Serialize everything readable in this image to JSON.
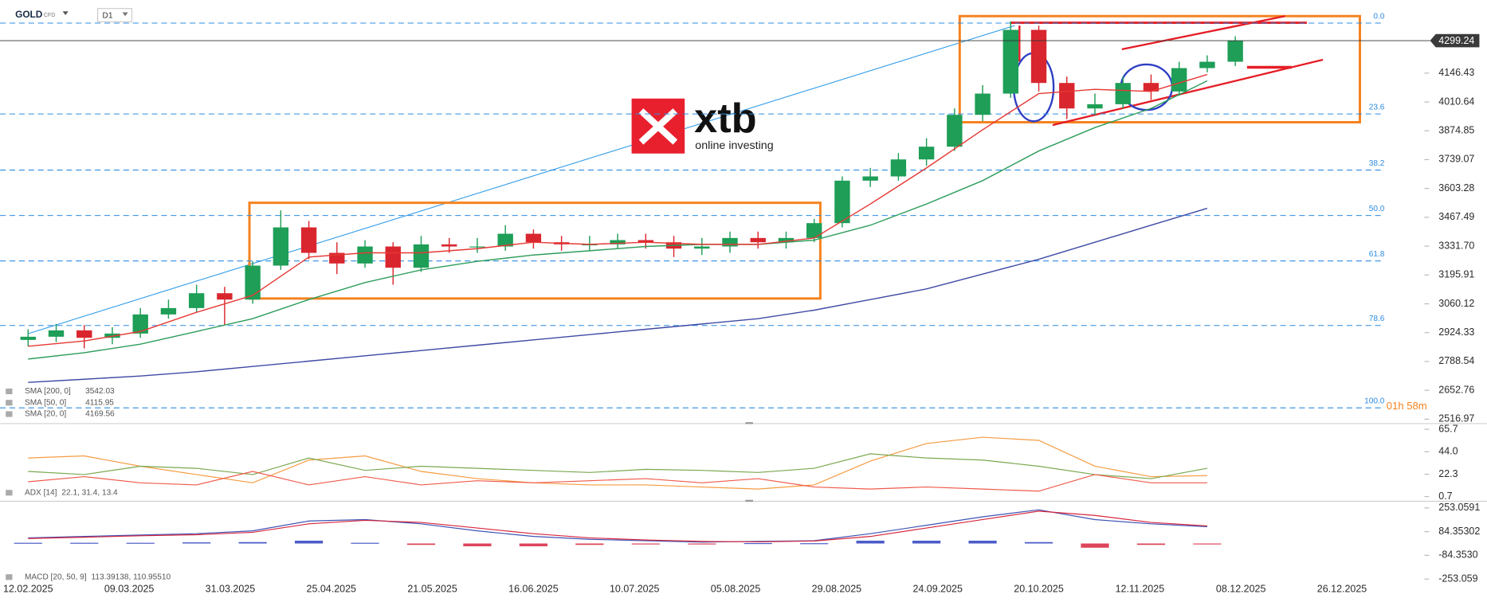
{
  "header": {
    "symbol": "GOLD",
    "instrument": "CFD",
    "timeframe": "D1"
  },
  "logo": {
    "brand": "xtb",
    "tagline": "online investing"
  },
  "chart_data": [
    {
      "type": "candlestick",
      "x": [
        0,
        5,
        10,
        15,
        20,
        25,
        30,
        35,
        40,
        45,
        50,
        55,
        60,
        65,
        70,
        75,
        80,
        85,
        90,
        95,
        100,
        105,
        110,
        115,
        120,
        125,
        130,
        135,
        140,
        145,
        150,
        155,
        160,
        165,
        170,
        175,
        180,
        185,
        190,
        195,
        200,
        205,
        210,
        215
      ],
      "open": [
        2890,
        2905,
        2935,
        2900,
        2920,
        3010,
        3040,
        3110,
        3080,
        3240,
        3420,
        3300,
        3250,
        3330,
        3230,
        3340,
        3330,
        3330,
        3390,
        3350,
        3340,
        3340,
        3360,
        3350,
        3320,
        3330,
        3370,
        3350,
        3370,
        3440,
        3640,
        3660,
        3740,
        3800,
        3950,
        4050,
        4350,
        4100,
        3980,
        4000,
        4100,
        4060,
        4170,
        4200
      ],
      "high": [
        2940,
        2965,
        2960,
        2950,
        3040,
        3080,
        3150,
        3140,
        3260,
        3500,
        3450,
        3350,
        3360,
        3350,
        3380,
        3370,
        3370,
        3430,
        3410,
        3380,
        3380,
        3390,
        3390,
        3380,
        3370,
        3400,
        3400,
        3400,
        3460,
        3660,
        3700,
        3770,
        3840,
        3980,
        4090,
        4390,
        4370,
        4130,
        4050,
        4130,
        4140,
        4200,
        4230,
        4320
      ],
      "low": [
        2860,
        2880,
        2850,
        2870,
        2900,
        2990,
        3020,
        2960,
        3060,
        3220,
        3270,
        3200,
        3230,
        3150,
        3210,
        3300,
        3300,
        3310,
        3320,
        3310,
        3310,
        3320,
        3320,
        3280,
        3290,
        3300,
        3320,
        3320,
        3350,
        3420,
        3610,
        3640,
        3710,
        3780,
        3920,
        4030,
        4060,
        3930,
        3950,
        3980,
        4020,
        4040,
        4150,
        4180
      ],
      "close": [
        2905,
        2935,
        2900,
        2920,
        3010,
        3040,
        3110,
        3080,
        3240,
        3420,
        3300,
        3250,
        3330,
        3230,
        3340,
        3330,
        3330,
        3390,
        3350,
        3340,
        3340,
        3360,
        3350,
        3320,
        3330,
        3370,
        3350,
        3370,
        3440,
        3640,
        3660,
        3740,
        3800,
        3950,
        4050,
        4350,
        4100,
        3980,
        4000,
        4100,
        4060,
        4170,
        4200,
        4299.24
      ],
      "up_color": "#1e9e57",
      "down_color": "#d9262e",
      "xlim": [
        -5,
        248
      ],
      "xticks": [
        {
          "value": 0,
          "label": "12.02.2025"
        },
        {
          "value": 18,
          "label": "09.03.2025"
        },
        {
          "value": 36,
          "label": "31.03.2025"
        },
        {
          "value": 54,
          "label": "25.04.2025"
        },
        {
          "value": 72,
          "label": "21.05.2025"
        },
        {
          "value": 90,
          "label": "16.06.2025"
        },
        {
          "value": 108,
          "label": "10.07.2025"
        },
        {
          "value": 126,
          "label": "05.08.2025"
        },
        {
          "value": 144,
          "label": "29.08.2025"
        },
        {
          "value": 162,
          "label": "24.09.2025"
        },
        {
          "value": 180,
          "label": "20.10.2025"
        },
        {
          "value": 198,
          "label": "12.11.2025"
        },
        {
          "value": 216,
          "label": "08.12.2025"
        },
        {
          "value": 234,
          "label": "26.12.2025"
        }
      ],
      "ylim": [
        2505,
        4455
      ],
      "yticks": [
        4146.43,
        4010.64,
        3874.85,
        3739.07,
        3603.28,
        3467.49,
        {
          "value": 3331.7,
          "label": "3331.70"
        },
        3195.91,
        3060.12,
        2924.33,
        2788.54,
        2652.76,
        2516.97
      ],
      "current_price": 4299.24,
      "fib_levels": [
        {
          "label": "0.0",
          "value": 4382
        },
        {
          "label": "23.6",
          "value": 3954
        },
        {
          "label": "38.2",
          "value": 3690
        },
        {
          "label": "50.0",
          "value": 3476
        },
        {
          "label": "61.8",
          "value": 3262
        },
        {
          "label": "78.6",
          "value": 2958
        },
        {
          "label": "100.0",
          "value": 2570
        }
      ],
      "countdown": "01h 58m",
      "line_x": [
        0,
        10,
        20,
        30,
        40,
        50,
        60,
        70,
        80,
        90,
        100,
        110,
        120,
        130,
        140,
        150,
        160,
        170,
        180,
        190,
        200,
        210
      ],
      "overlays": [
        {
          "name": "SMA [200, 0]",
          "last": 3542.03,
          "color": "#3f4aa5",
          "values": [
            2690,
            2705,
            2720,
            2740,
            2765,
            2790,
            2815,
            2840,
            2865,
            2890,
            2915,
            2940,
            2965,
            2990,
            3030,
            3080,
            3130,
            3200,
            3270,
            3350,
            3430,
            3510
          ]
        },
        {
          "name": "SMA [50, 0]",
          "last": 4115.95,
          "color": "#2e9d5b",
          "values": [
            2800,
            2830,
            2870,
            2930,
            2990,
            3080,
            3160,
            3220,
            3260,
            3290,
            3310,
            3330,
            3340,
            3340,
            3360,
            3430,
            3530,
            3640,
            3780,
            3890,
            3980,
            4110
          ]
        },
        {
          "name": "SMA [20, 0]",
          "last": 4169.56,
          "color": "#e53935",
          "values": [
            2860,
            2885,
            2930,
            3020,
            3100,
            3280,
            3300,
            3300,
            3320,
            3350,
            3340,
            3350,
            3340,
            3340,
            3370,
            3530,
            3700,
            3880,
            4050,
            4070,
            4060,
            4140
          ]
        }
      ]
    },
    {
      "type": "line",
      "legend": "ADX [14]",
      "legend_values": "22.1, 31.4, 13.4",
      "x": [
        0,
        10,
        20,
        30,
        40,
        50,
        60,
        70,
        80,
        90,
        100,
        110,
        120,
        130,
        140,
        150,
        160,
        170,
        180,
        190,
        200,
        210
      ],
      "xlim": [
        -5,
        248
      ],
      "ylim": [
        -2,
        71.2
      ],
      "yticks": [
        65.7,
        {
          "value": 44,
          "label": "44.0"
        },
        22.3,
        0.7
      ],
      "series": [
        {
          "color": "#f59b42",
          "values": [
            38,
            40,
            30,
            22,
            14,
            36,
            40,
            25,
            18,
            14,
            12,
            12,
            10,
            8,
            12,
            35,
            52,
            58,
            55,
            30,
            20,
            21
          ]
        },
        {
          "color": "#7aa84f",
          "values": [
            25,
            22,
            30,
            28,
            22,
            38,
            26,
            30,
            28,
            26,
            24,
            27,
            26,
            24,
            28,
            42,
            38,
            36,
            30,
            22,
            18,
            28
          ]
        },
        {
          "color": "#ef5b4b",
          "values": [
            15,
            20,
            14,
            12,
            25,
            12,
            20,
            12,
            16,
            14,
            16,
            18,
            14,
            18,
            10,
            8,
            10,
            8,
            6,
            22,
            14,
            14
          ]
        }
      ]
    },
    {
      "type": "line",
      "legend": "MACD [20, 50, 9]",
      "legend_values": "113.39138, 110.95510",
      "x": [
        0,
        10,
        20,
        30,
        40,
        50,
        60,
        70,
        80,
        90,
        100,
        110,
        120,
        130,
        140,
        150,
        160,
        170,
        180,
        190,
        200,
        210
      ],
      "xlim": [
        -5,
        248
      ],
      "ylim": [
        -327,
        287
      ],
      "yticks": [
        253.0591,
        84.35302,
        {
          "value": -84.353,
          "label": "-84.3530"
        },
        -253.059
      ],
      "series": [
        {
          "color": "#3e53b5",
          "values": [
            40,
            50,
            60,
            70,
            90,
            160,
            170,
            140,
            90,
            50,
            30,
            20,
            10,
            15,
            20,
            70,
            130,
            190,
            240,
            170,
            140,
            120
          ]
        },
        {
          "color": "#d7263d",
          "values": [
            35,
            45,
            55,
            62,
            80,
            140,
            165,
            150,
            110,
            70,
            40,
            25,
            15,
            12,
            18,
            50,
            110,
            170,
            230,
            200,
            150,
            125
          ]
        }
      ],
      "histogram": {
        "up_color": "#2b3fbf",
        "down_color": "#d7263d",
        "values": [
          5,
          5,
          5,
          8,
          10,
          20,
          5,
          -10,
          -20,
          -20,
          -10,
          -5,
          -5,
          3,
          2,
          20,
          20,
          20,
          10,
          -30,
          -10,
          -5
        ]
      }
    }
  ]
}
